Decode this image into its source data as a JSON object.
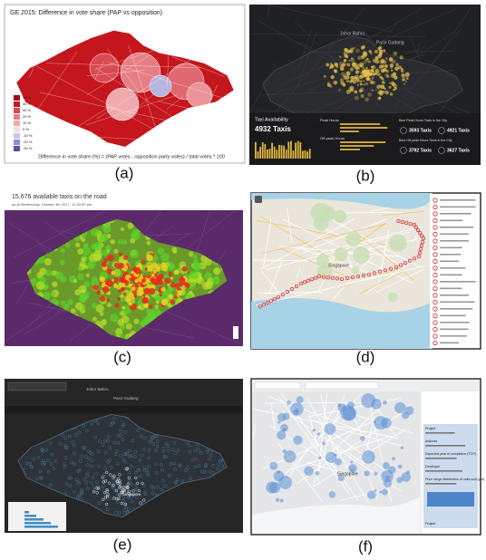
{
  "panels": [
    {
      "caption": "(a)",
      "title": "GE 2015: Difference in vote share (PAP vs opposition)",
      "legend": [
        "50 %",
        "40 %",
        "30 %",
        "20 %",
        "10 %",
        "0 %",
        "-10 %",
        "-20 %",
        "-30 %"
      ],
      "footer": "Difference in vote share (%) = (PAP votes - opposition party votes) / total votes * 100"
    },
    {
      "caption": "(b)",
      "places": [
        "Johor Bahru",
        "Pasir Gudang"
      ],
      "heading": "Taxi Availability",
      "total": "4932 Taxis",
      "sections": [
        "Peak Hours",
        "Off-peak Hours"
      ],
      "best_peak": "Best Peak Hours Taxis in the City",
      "best_offpeak": "Best Off-peak Hours Taxis in the City",
      "stats": [
        "3593 Taxis",
        "4921 Taxis",
        "3792 Taxis",
        "3627 Taxis"
      ]
    },
    {
      "caption": "(c)",
      "title": "15,676 available taxis on the road",
      "subtitle": "as at Wednesday, October 4th 2017, 12:40:02 pm"
    },
    {
      "caption": "(d)",
      "place": "Singapore"
    },
    {
      "caption": "(e)",
      "places": [
        "Johor Bahru",
        "Pasir Gudang",
        "Singapore"
      ]
    },
    {
      "caption": "(f)",
      "place": "Singapore",
      "fields": [
        "Project",
        "Address",
        "Expected year of completion (TOP)",
        "Developer",
        "Price range distribution of units sold (psf)"
      ]
    }
  ]
}
